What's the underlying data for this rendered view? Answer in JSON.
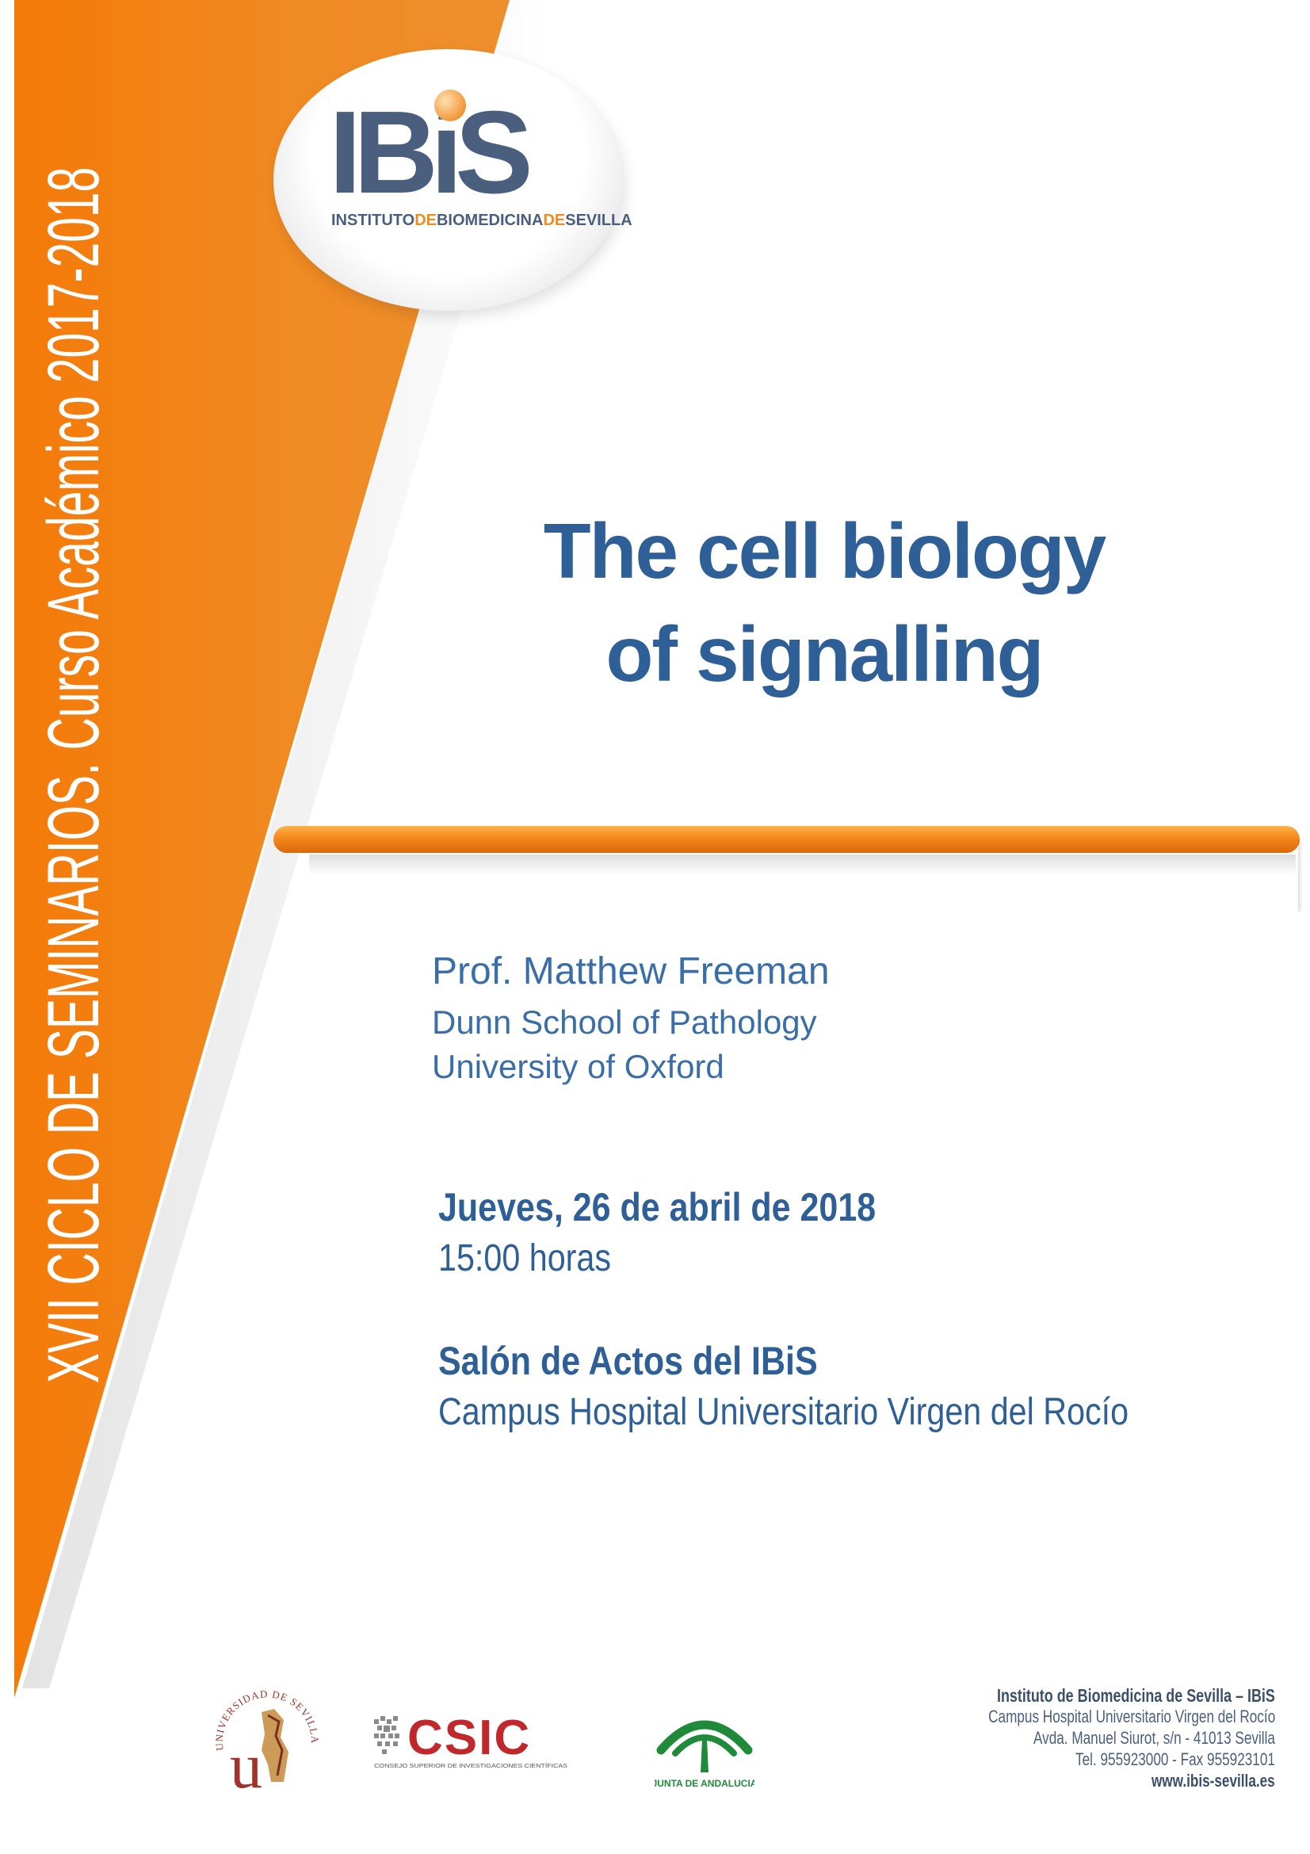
{
  "side_banner": {
    "text": "XVII CICLO DE SEMINARIOS.  Curso Académico 2017-2018"
  },
  "logo": {
    "word": "IBiS",
    "sub_parts": [
      "INSTITUTO",
      "DE",
      "BIOMEDICINA",
      "DE",
      "SEVILLA"
    ]
  },
  "title": {
    "line1": "The cell biology",
    "line2": "of signalling"
  },
  "speaker": {
    "name": "Prof. Matthew Freeman",
    "department": "Dunn School of Pathology",
    "university": "University of Oxford"
  },
  "event": {
    "date": "Jueves, 26 de abril de 2018",
    "time": "15:00 horas",
    "place": "Salón de Actos del IBiS",
    "campus": "Campus Hospital Universitario Virgen del  Rocío"
  },
  "footer_logos": {
    "us_ring": "UNIVERSIDAD DE SEVILLA",
    "us_letter": "u",
    "csic": "CSIC",
    "csic_sub": "CONSEJO SUPERIOR DE INVESTIGACIONES CIENTÍFICAS",
    "junta": "JUNTA DE ANDALUCIA"
  },
  "address": {
    "line1": "Instituto de Biomedicina de Sevilla – IBiS",
    "line2": "Campus Hospital Universitario Virgen del Rocío",
    "line3": "Avda. Manuel Siurot, s/n  -  41013 Sevilla",
    "line4": "Tel. 955923000  -  Fax 955923101",
    "line5": "www.ibis-sevilla.es"
  },
  "colors": {
    "orange": "#f07d0c",
    "blue": "#2e5f96",
    "logo_blue": "#4a5f7e"
  }
}
